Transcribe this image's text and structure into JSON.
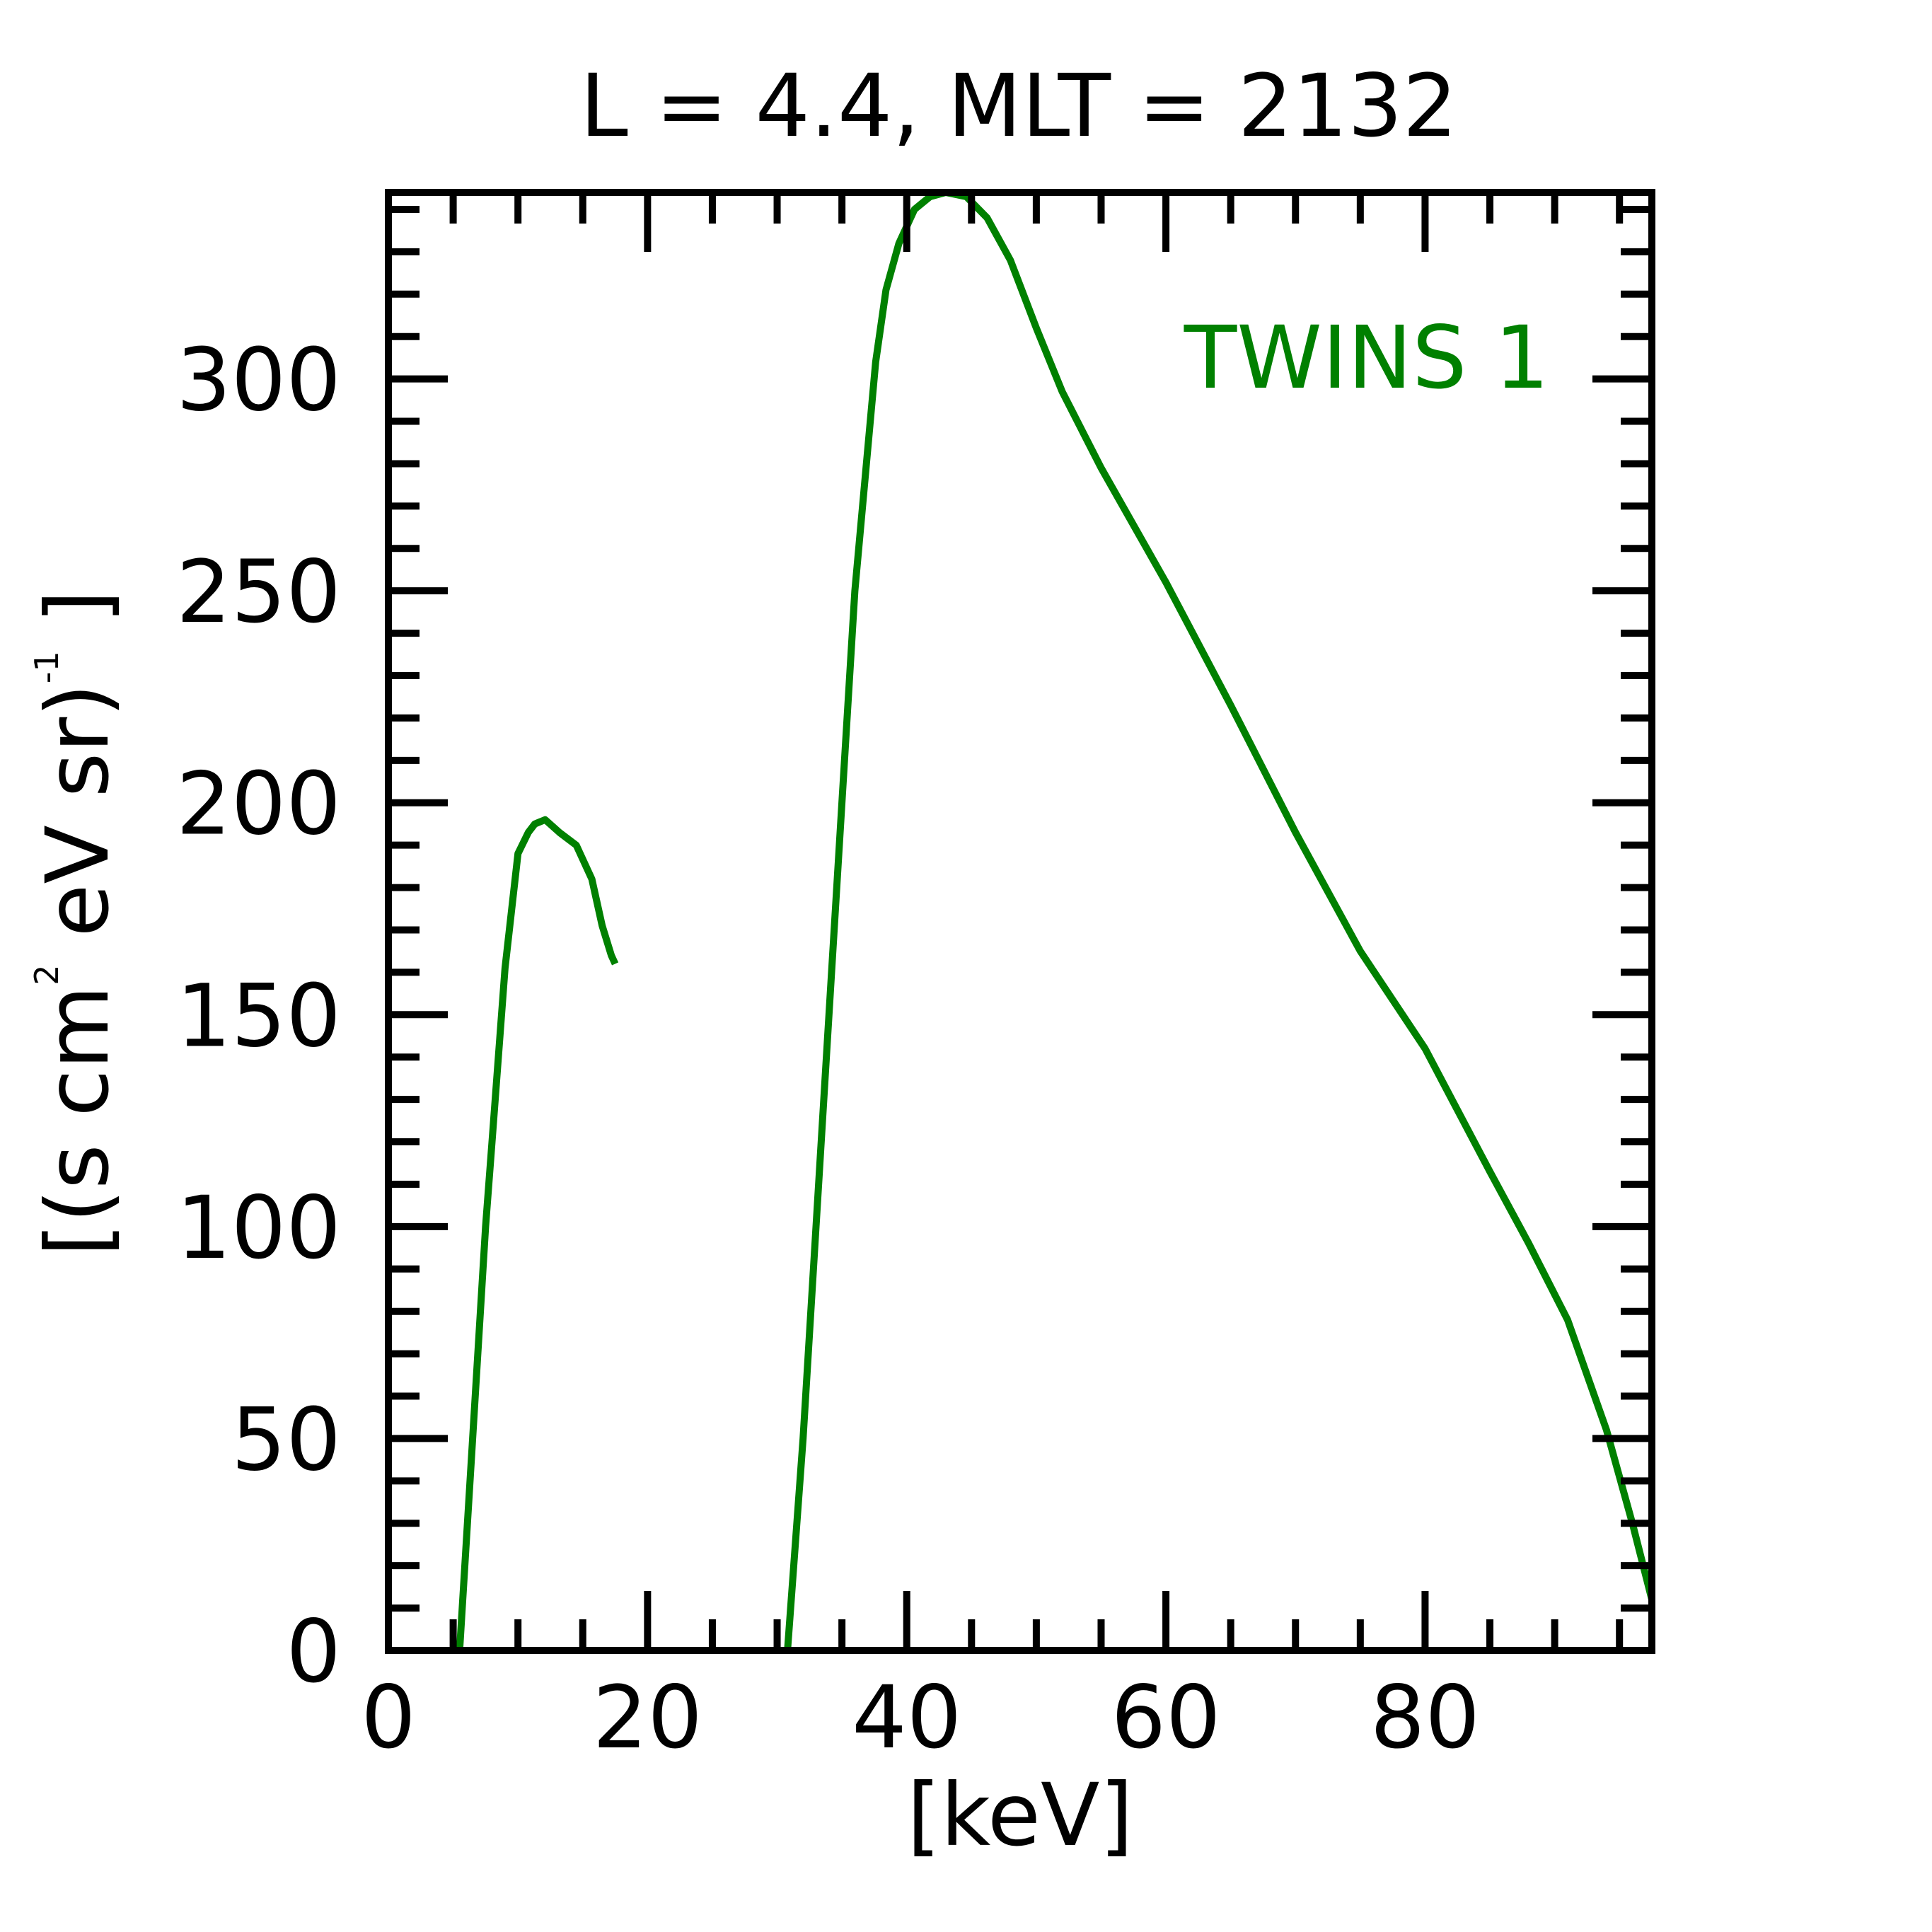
{
  "chart_data": {
    "type": "line",
    "title": "L =  4.4, MLT = 2132",
    "xlabel": "[keV]",
    "ylabel": {
      "open": "[(s cm",
      "sup_two": "2",
      "middle": " eV sr)",
      "sup_minus_one": "-1",
      "close": " ]"
    },
    "xlim": [
      0,
      97.5
    ],
    "ylim": [
      0,
      344
    ],
    "x_ticks": [
      0,
      20,
      40,
      60,
      80
    ],
    "x_tick_labels": [
      "0",
      "20",
      "40",
      "60",
      "80"
    ],
    "y_ticks": [
      0,
      50,
      100,
      150,
      200,
      250,
      300
    ],
    "y_tick_labels": [
      "0",
      "50",
      "100",
      "150",
      "200",
      "250",
      "300"
    ],
    "x_minor_step": 5,
    "y_minor_step": 10,
    "grid": false,
    "legend_placement": "top-right",
    "series": [
      {
        "name": "TWINS 1",
        "color": "#008000",
        "segments": [
          [
            [
              5.5,
              0
            ],
            [
              6.5,
              50
            ],
            [
              7.5,
              100
            ],
            [
              8.0,
              120
            ],
            [
              9.0,
              161
            ],
            [
              10.0,
              188
            ],
            [
              10.8,
              193
            ],
            [
              11.3,
              195
            ],
            [
              12.1,
              196
            ],
            [
              13.2,
              193
            ],
            [
              14.5,
              190
            ],
            [
              15.7,
              182
            ],
            [
              16.5,
              171
            ],
            [
              17.2,
              164
            ],
            [
              17.5,
              162
            ]
          ],
          [
            [
              30.8,
              0
            ],
            [
              32.0,
              50
            ],
            [
              33.0,
              100
            ],
            [
              34.0,
              150
            ],
            [
              35.0,
              200
            ],
            [
              36.0,
              250
            ],
            [
              36.8,
              277
            ],
            [
              37.6,
              304
            ],
            [
              38.4,
              321
            ],
            [
              39.4,
              332
            ],
            [
              40.6,
              340
            ],
            [
              41.8,
              343
            ],
            [
              43.0,
              344
            ],
            [
              44.6,
              343
            ],
            [
              46.2,
              338
            ],
            [
              48.0,
              328
            ],
            [
              50.0,
              312
            ],
            [
              52.0,
              297
            ],
            [
              55.0,
              279
            ],
            [
              60.0,
              252
            ],
            [
              65.0,
              223
            ],
            [
              70.0,
              193
            ],
            [
              75.0,
              165
            ],
            [
              80.0,
              142
            ],
            [
              85.0,
              113
            ],
            [
              88.0,
              96
            ],
            [
              91.0,
              78
            ],
            [
              94.0,
              52
            ],
            [
              96.0,
              30
            ],
            [
              97.5,
              12
            ]
          ]
        ]
      }
    ]
  }
}
